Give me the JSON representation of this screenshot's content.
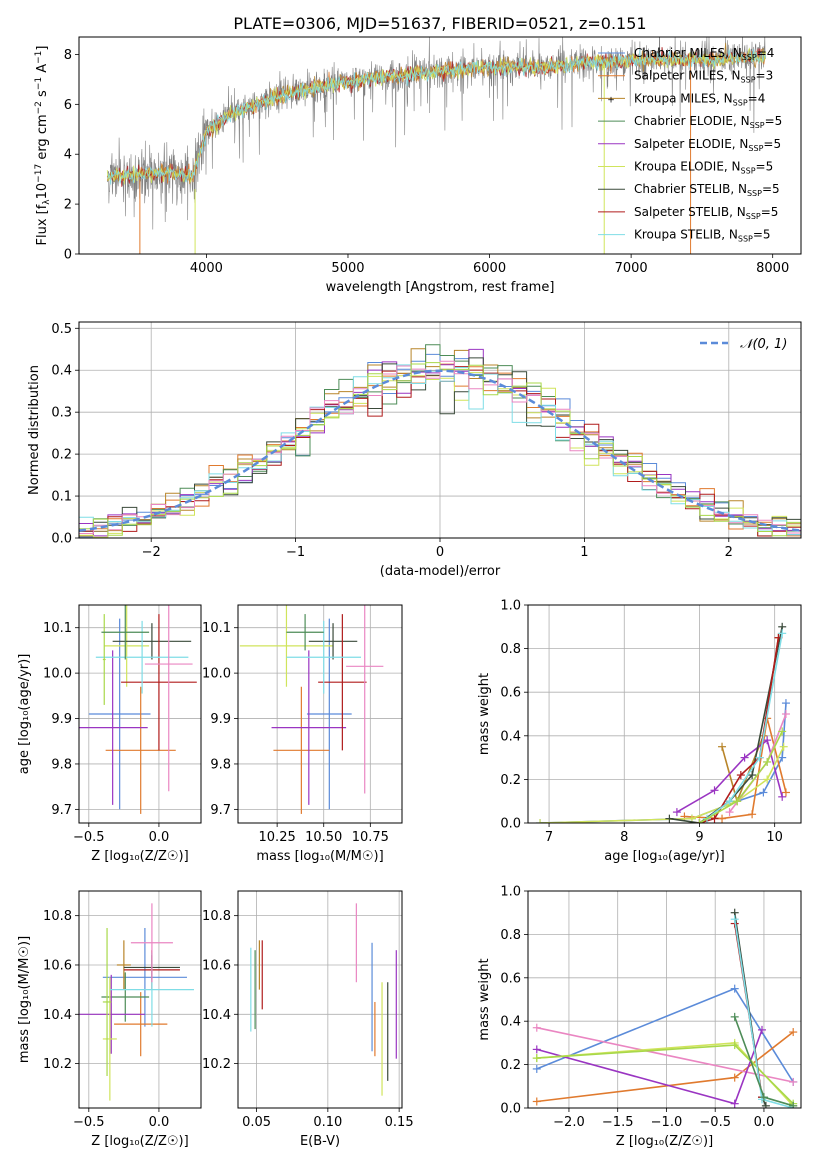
{
  "title": "PLATE=0306, MJD=51637, FIBERID=0521, z=0.151",
  "series": [
    {
      "name": "Chabrier MILES, N_SSP=4",
      "legend": [
        "Chabrier MILES, N",
        "SSP",
        "=4"
      ],
      "color": "#5b8bd9"
    },
    {
      "name": "Salpeter MILES, N_SSP=3",
      "legend": [
        "Salpeter MILES, N",
        "SSP",
        "=3"
      ],
      "color": "#e07a2e"
    },
    {
      "name": "Kroupa MILES, N_SSP=4",
      "legend": [
        "Kroupa MILES, N",
        "SSP",
        "=4"
      ],
      "color": "#b8852a"
    },
    {
      "name": "Chabrier ELODIE, N_SSP=5",
      "legend": [
        "Chabrier ELODIE, N",
        "SSP",
        "=5"
      ],
      "color": "#4d8c57"
    },
    {
      "name": "Salpeter ELODIE, N_SSP=5",
      "legend": [
        "Salpeter ELODIE, N",
        "SSP",
        "=5"
      ],
      "color": "#9a35c2"
    },
    {
      "name": "Kroupa ELODIE, N_SSP=5",
      "legend": [
        "Kroupa ELODIE, N",
        "SSP",
        "=5"
      ],
      "color": "#d0e45c"
    },
    {
      "name": "Chabrier STELIB, N_SSP=5",
      "legend": [
        "Chabrier STELIB, N",
        "SSP",
        "=5"
      ],
      "color": "#3a4a3a"
    },
    {
      "name": "Salpeter STELIB, N_SSP=5",
      "legend": [
        "Salpeter STELIB, N",
        "SSP",
        "=5"
      ],
      "color": "#b01c1c"
    },
    {
      "name": "Kroupa STELIB, N_SSP=5",
      "legend": [
        "Kroupa STELIB, N",
        "SSP",
        "=5"
      ],
      "color": "#7fdde6"
    },
    {
      "name": "Pink",
      "legend": null,
      "color": "#ea86c2"
    },
    {
      "name": "Lime",
      "legend": null,
      "color": "#a8d84a"
    }
  ],
  "chart_data": [
    {
      "id": "spectrum",
      "type": "line",
      "xlabel": "wavelength [Angstrom, rest frame]",
      "ylabel": [
        "Flux [f",
        "λ",
        "10",
        "−17",
        " erg cm",
        "−2",
        " s",
        "−1",
        " A",
        "−1",
        "]"
      ],
      "xlim": [
        3100,
        8200
      ],
      "ylim": [
        0,
        8.7
      ],
      "xticks": [
        4000,
        5000,
        6000,
        7000,
        8000
      ],
      "yticks": [
        0,
        2,
        4,
        6,
        8
      ],
      "data_anchor_points": {
        "x": [
          3300,
          3500,
          3700,
          3900,
          4000,
          4200,
          4500,
          4800,
          5000,
          5300,
          5600,
          6000,
          6400,
          6800,
          7200,
          7600,
          7900
        ],
        "y": [
          3.1,
          3.2,
          3.3,
          3.1,
          4.9,
          5.7,
          6.3,
          6.7,
          6.9,
          7.1,
          7.3,
          7.5,
          7.5,
          7.7,
          7.8,
          7.8,
          7.9
        ]
      }
    },
    {
      "id": "residuals",
      "type": "histogram",
      "xlabel": "(data-model)/error",
      "ylabel": "Normed distribution",
      "xlim": [
        -2.5,
        2.5
      ],
      "ylim": [
        0,
        0.515
      ],
      "xticks": [
        -2,
        -1,
        0,
        1,
        2
      ],
      "xtick_labels": [
        "−2",
        "−1",
        "0",
        "1",
        "2"
      ],
      "yticks": [
        0,
        0.1,
        0.2,
        0.3,
        0.4,
        0.5
      ],
      "ytick_labels": [
        "0.0",
        "0.1",
        "0.2",
        "0.3",
        "0.4",
        "0.5"
      ],
      "bin_width": 0.1,
      "reference_label": "𝒩(0, 1)",
      "reference_color": "#5b8bd9"
    },
    {
      "id": "age-vs-Z",
      "type": "errorbar",
      "xlabel": "Z [log₁₀(Z/Z☉)]",
      "ylabel": "age  [log₁₀(age/yr)]",
      "xlim": [
        -0.57,
        0.3
      ],
      "ylim": [
        9.67,
        10.15
      ],
      "xticks": [
        -0.5,
        0.0
      ],
      "xtick_labels": [
        "−0.5",
        "0.0"
      ],
      "yticks": [
        9.7,
        9.8,
        9.9,
        10.0,
        10.1
      ],
      "ytick_labels": [
        "9.7",
        "9.8",
        "9.9",
        "10.0",
        "10.1"
      ],
      "points": [
        {
          "series": 0,
          "x": -0.28,
          "xerr": 0.22,
          "y": 9.91,
          "yerr": 0.21
        },
        {
          "series": 1,
          "x": -0.13,
          "xerr": 0.25,
          "y": 9.83,
          "yerr": 0.14
        },
        {
          "series": 4,
          "x": -0.33,
          "xerr": 0.25,
          "y": 9.88,
          "yerr": 0.17
        },
        {
          "series": 5,
          "x": -0.23,
          "xerr": 0.16,
          "y": 10.06,
          "yerr": 0.09
        },
        {
          "series": 6,
          "x": -0.05,
          "xerr": 0.28,
          "y": 10.07,
          "yerr": 0.04
        },
        {
          "series": 7,
          "x": 0.0,
          "xerr": 0.27,
          "y": 9.98,
          "yerr": 0.15
        },
        {
          "series": 8,
          "x": -0.12,
          "xerr": 0.33,
          "y": 10.035,
          "yerr": 0.08
        },
        {
          "series": 9,
          "x": 0.07,
          "xerr": 0.17,
          "y": 10.02,
          "yerr": 0.28
        },
        {
          "series": 10,
          "x": -0.39,
          "xerr": 0.01,
          "y": 10.03,
          "yerr": 0.1
        },
        {
          "series": 3,
          "x": -0.24,
          "xerr": 0.17,
          "y": 10.09,
          "yerr": 0.06
        }
      ]
    },
    {
      "id": "age-vs-mass",
      "type": "errorbar",
      "xlabel": "mass [log₁₀(M/M☉)]",
      "xlim": [
        10.04,
        10.92
      ],
      "ylim": [
        9.67,
        10.15
      ],
      "xticks": [
        10.25,
        10.5,
        10.75
      ],
      "xtick_labels": [
        "10.25",
        "10.50",
        "10.75"
      ],
      "yticks": [
        9.7,
        9.8,
        9.9,
        10.0,
        10.1
      ],
      "ytick_labels": [
        "9.7",
        "9.8",
        "9.9",
        "10.0",
        "10.1"
      ],
      "points": [
        {
          "series": 0,
          "x": 10.53,
          "xerr": 0.12,
          "y": 9.91,
          "yerr": 0.21
        },
        {
          "series": 1,
          "x": 10.38,
          "xerr": 0.15,
          "y": 9.83,
          "yerr": 0.14
        },
        {
          "series": 4,
          "x": 10.42,
          "xerr": 0.2,
          "y": 9.88,
          "yerr": 0.17
        },
        {
          "series": 5,
          "x": 10.3,
          "xerr": 0.25,
          "y": 10.06,
          "yerr": 0.09
        },
        {
          "series": 6,
          "x": 10.55,
          "xerr": 0.13,
          "y": 10.07,
          "yerr": 0.04
        },
        {
          "series": 7,
          "x": 10.6,
          "xerr": 0.13,
          "y": 9.98,
          "yerr": 0.15
        },
        {
          "series": 8,
          "x": 10.5,
          "xerr": 0.2,
          "y": 10.035,
          "yerr": 0.08
        },
        {
          "series": 9,
          "x": 10.72,
          "xerr": 0.1,
          "y": 10.015,
          "yerr": 0.28
        },
        {
          "series": 3,
          "x": 10.4,
          "xerr": 0.1,
          "y": 10.09,
          "yerr": 0.04
        }
      ]
    },
    {
      "id": "massweight-vs-age",
      "type": "line",
      "xlabel": "age  [log₁₀(age/yr)]",
      "ylabel": "mass weight",
      "xlim": [
        6.72,
        10.35
      ],
      "ylim": [
        0,
        1.0
      ],
      "xticks": [
        7,
        8,
        9,
        10
      ],
      "yticks": [
        0,
        0.2,
        0.4,
        0.6,
        0.8,
        1.0
      ],
      "ytick_labels": [
        "0.0",
        "0.2",
        "0.4",
        "0.6",
        "0.8",
        "1.0"
      ],
      "lines": [
        {
          "series": 0,
          "x": [
            6.88,
            8.9,
            9.5,
            9.85,
            10.1,
            10.15
          ],
          "y": [
            0.0,
            0.02,
            0.1,
            0.14,
            0.3,
            0.55
          ]
        },
        {
          "series": 1,
          "x": [
            8.8,
            9.3,
            9.7,
            9.9,
            10.15
          ],
          "y": [
            0.03,
            0.02,
            0.04,
            0.48,
            0.14
          ]
        },
        {
          "series": 2,
          "x": [
            9.3,
            9.5,
            9.85,
            10.05
          ],
          "y": [
            0.35,
            0.1,
            0.4,
            0.85
          ]
        },
        {
          "series": 4,
          "x": [
            8.7,
            9.2,
            9.6,
            9.9,
            10.1
          ],
          "y": [
            0.05,
            0.15,
            0.3,
            0.38,
            0.12
          ]
        },
        {
          "series": 5,
          "x": [
            6.88,
            8.9,
            9.5,
            9.9,
            10.12
          ],
          "y": [
            0.0,
            0.02,
            0.1,
            0.2,
            0.35
          ]
        },
        {
          "series": 6,
          "x": [
            8.6,
            9.0,
            9.4,
            9.7,
            10.1
          ],
          "y": [
            0.02,
            0.0,
            0.1,
            0.22,
            0.9
          ]
        },
        {
          "series": 7,
          "x": [
            9.0,
            9.2,
            9.55,
            9.8,
            10.05
          ],
          "y": [
            0.0,
            0.02,
            0.22,
            0.3,
            0.85
          ]
        },
        {
          "series": 8,
          "x": [
            9.1,
            9.4,
            9.8,
            10.1
          ],
          "y": [
            0.02,
            0.1,
            0.3,
            0.87
          ]
        },
        {
          "series": 9,
          "x": [
            9.4,
            9.9,
            10.15
          ],
          "y": [
            0.05,
            0.28,
            0.5
          ]
        },
        {
          "series": 10,
          "x": [
            9.0,
            9.5,
            9.9,
            10.1
          ],
          "y": [
            0.0,
            0.1,
            0.28,
            0.42
          ]
        }
      ]
    },
    {
      "id": "mass-vs-Z",
      "type": "errorbar",
      "xlabel": "Z [log₁₀(Z/Z☉)]",
      "ylabel": "mass [log₁₀(M/M☉)]",
      "xlim": [
        -0.57,
        0.3
      ],
      "ylim": [
        10.02,
        10.9
      ],
      "xticks": [
        -0.5,
        0.0
      ],
      "xtick_labels": [
        "−0.5",
        "0.0"
      ],
      "yticks": [
        10.2,
        10.4,
        10.6,
        10.8
      ],
      "ytick_labels": [
        "10.2",
        "10.4",
        "10.6",
        "10.8"
      ],
      "points": [
        {
          "series": 0,
          "x": -0.1,
          "xerr": 0.3,
          "y": 10.55,
          "yerr": 0.2
        },
        {
          "series": 1,
          "x": -0.13,
          "xerr": 0.19,
          "y": 10.36,
          "yerr": 0.13
        },
        {
          "series": 2,
          "x": -0.25,
          "xerr": 0.05,
          "y": 10.6,
          "yerr": 0.1
        },
        {
          "series": 3,
          "x": -0.24,
          "xerr": 0.17,
          "y": 10.47,
          "yerr": 0.1
        },
        {
          "series": 4,
          "x": -0.34,
          "xerr": 0.24,
          "y": 10.4,
          "yerr": 0.16
        },
        {
          "series": 5,
          "x": -0.35,
          "xerr": 0.05,
          "y": 10.3,
          "yerr": 0.25
        },
        {
          "series": 6,
          "x": -0.05,
          "xerr": 0.2,
          "y": 10.59,
          "yerr": 0.05
        },
        {
          "series": 7,
          "x": -0.05,
          "xerr": 0.2,
          "y": 10.58,
          "yerr": 0.08
        },
        {
          "series": 8,
          "x": -0.05,
          "xerr": 0.3,
          "y": 10.5,
          "yerr": 0.15
        },
        {
          "series": 9,
          "x": -0.05,
          "xerr": 0.15,
          "y": 10.69,
          "yerr": 0.16
        },
        {
          "series": 10,
          "x": -0.37,
          "xerr": 0.03,
          "y": 10.45,
          "yerr": 0.3
        }
      ]
    },
    {
      "id": "mass-vs-ebv",
      "type": "errorbar",
      "xlabel": "E(B-V)",
      "xlim": [
        0.037,
        0.152
      ],
      "ylim": [
        10.02,
        10.9
      ],
      "xticks": [
        0.05,
        0.1,
        0.15
      ],
      "xtick_labels": [
        "0.05",
        "0.10",
        "0.15"
      ],
      "yticks": [
        10.2,
        10.4,
        10.6,
        10.8
      ],
      "ytick_labels": [
        "10.2",
        "10.4",
        "10.6",
        "10.8"
      ],
      "points": [
        {
          "series": 8,
          "x": 0.046,
          "xerr": 0,
          "y": 10.5,
          "yerr": 0.17
        },
        {
          "series": 3,
          "x": 0.049,
          "xerr": 0,
          "y": 10.5,
          "yerr": 0.16
        },
        {
          "series": 2,
          "x": 0.052,
          "xerr": 0,
          "y": 10.6,
          "yerr": 0.1
        },
        {
          "series": 7,
          "x": 0.054,
          "xerr": 0,
          "y": 10.56,
          "yerr": 0.14
        },
        {
          "series": 9,
          "x": 0.12,
          "xerr": 0,
          "y": 10.69,
          "yerr": 0.16
        },
        {
          "series": 0,
          "x": 0.131,
          "xerr": 0,
          "y": 10.47,
          "yerr": 0.22
        },
        {
          "series": 1,
          "x": 0.133,
          "xerr": 0,
          "y": 10.34,
          "yerr": 0.11
        },
        {
          "series": 5,
          "x": 0.138,
          "xerr": 0,
          "y": 10.3,
          "yerr": 0.23
        },
        {
          "series": 6,
          "x": 0.142,
          "xerr": 0,
          "y": 10.33,
          "yerr": 0.2
        },
        {
          "series": 4,
          "x": 0.148,
          "xerr": 0,
          "y": 10.44,
          "yerr": 0.22
        }
      ]
    },
    {
      "id": "massweight-vs-Z",
      "type": "line",
      "xlabel": "Z [log₁₀(Z/Z☉)]",
      "ylabel": "mass weight",
      "xlim": [
        -2.42,
        0.38
      ],
      "ylim": [
        0,
        1.0
      ],
      "xticks": [
        -2.0,
        -1.5,
        -1.0,
        -0.5,
        0.0
      ],
      "xtick_labels": [
        "−2.0",
        "−1.5",
        "−1.0",
        "−0.5",
        "0.0"
      ],
      "yticks": [
        0,
        0.2,
        0.4,
        0.6,
        0.8,
        1.0
      ],
      "ytick_labels": [
        "0.0",
        "0.2",
        "0.4",
        "0.6",
        "0.8",
        "1.0"
      ],
      "lines": [
        {
          "series": 0,
          "x": [
            -2.33,
            -0.3,
            0.3
          ],
          "y": [
            0.18,
            0.55,
            0.12
          ]
        },
        {
          "series": 1,
          "x": [
            -2.33,
            -0.3,
            0.3
          ],
          "y": [
            0.03,
            0.14,
            0.35
          ]
        },
        {
          "series": 9,
          "x": [
            -2.33,
            0.3
          ],
          "y": [
            0.37,
            0.12
          ]
        },
        {
          "series": 4,
          "x": [
            -2.33,
            -0.3,
            -0.02
          ],
          "y": [
            0.27,
            0.02,
            0.36
          ]
        },
        {
          "series": 5,
          "x": [
            -2.33,
            -0.3,
            0.3
          ],
          "y": [
            0.23,
            0.3,
            0.01
          ]
        },
        {
          "series": 10,
          "x": [
            -2.33,
            -0.3,
            0.3
          ],
          "y": [
            0.23,
            0.29,
            0.02
          ]
        },
        {
          "series": 6,
          "x": [
            -0.3,
            -0.02,
            0.02
          ],
          "y": [
            0.9,
            0.05,
            0.01
          ]
        },
        {
          "series": 7,
          "x": [
            -0.3,
            -0.02
          ],
          "y": [
            0.85,
            0.05
          ]
        },
        {
          "series": 8,
          "x": [
            -0.3,
            -0.02,
            0.3
          ],
          "y": [
            0.87,
            0.04,
            0.0
          ]
        },
        {
          "series": 3,
          "x": [
            -0.3,
            0.0,
            0.3
          ],
          "y": [
            0.42,
            0.05,
            0.01
          ]
        }
      ]
    }
  ]
}
